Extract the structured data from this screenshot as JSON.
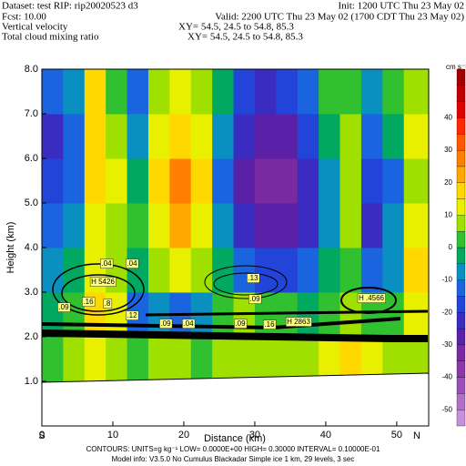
{
  "chart_data": {
    "type": "heatmap",
    "header": {
      "dataset": "Dataset: test  RIP: rip20020523 d3",
      "init": "Init: 1200 UTC Thu 23 May 02",
      "fcst": "Fcst:    10.00",
      "valid": "Valid: 2200 UTC Thu 23 May 02 (1700 CDT Thu 23 May 02)",
      "field1": "Vertical velocity",
      "xy1": "XY=  54.5, 24.5 to  54.8, 85.3",
      "field2": "Total cloud mixing ratio",
      "xy2": "XY=  54.5, 24.5 to  54.8, 85.3"
    },
    "xlabel": "Distance (km)",
    "ylabel": "Height (km)",
    "left_end": "S",
    "right_end": "N",
    "xlim": [
      0,
      54.5
    ],
    "ylim": [
      0,
      8
    ],
    "xticks": [
      0,
      10,
      20,
      30,
      40,
      50
    ],
    "yticks": [
      {
        "value": 1,
        "label": "1.0"
      },
      {
        "value": 2,
        "label": "2.0"
      },
      {
        "value": 3,
        "label": "3.0"
      },
      {
        "value": 4,
        "label": "4.0"
      },
      {
        "value": 5,
        "label": "5.0"
      },
      {
        "value": 6,
        "label": "6.0"
      },
      {
        "value": 7,
        "label": "7.0"
      },
      {
        "value": 8,
        "label": "8.0"
      }
    ],
    "x_edges": [
      0,
      3,
      6,
      9,
      12,
      15,
      18,
      21,
      24,
      27,
      30,
      33,
      36,
      39,
      42,
      45,
      48,
      51,
      54.5
    ],
    "y_edges": [
      1,
      2,
      3,
      4,
      5,
      6,
      7,
      8
    ],
    "values": [
      [
        0,
        5,
        10,
        5,
        0,
        5,
        5,
        0,
        5,
        5,
        5,
        5,
        5,
        10,
        15,
        10,
        5,
        5
      ],
      [
        -5,
        0,
        15,
        10,
        -15,
        -10,
        -15,
        -10,
        0,
        5,
        0,
        0,
        -5,
        0,
        5,
        0,
        0,
        10
      ],
      [
        -10,
        -5,
        10,
        5,
        -5,
        5,
        10,
        5,
        -5,
        -15,
        -20,
        -20,
        -15,
        -5,
        0,
        -15,
        -10,
        15
      ],
      [
        -15,
        -10,
        10,
        5,
        0,
        10,
        20,
        10,
        -10,
        -25,
        -30,
        -30,
        -25,
        -10,
        5,
        -25,
        -10,
        10
      ],
      [
        -20,
        -15,
        15,
        10,
        -5,
        15,
        25,
        15,
        -15,
        -30,
        -35,
        -35,
        -25,
        -10,
        5,
        -20,
        -15,
        5
      ],
      [
        -25,
        -15,
        18,
        5,
        -10,
        10,
        15,
        10,
        -10,
        -25,
        -30,
        -30,
        -20,
        -5,
        5,
        -15,
        -5,
        10
      ],
      [
        -15,
        -10,
        15,
        0,
        -15,
        5,
        10,
        5,
        -5,
        -20,
        -25,
        -20,
        -15,
        0,
        0,
        -10,
        0,
        5
      ]
    ],
    "colorbar": {
      "unit": "cm s⁻¹",
      "levels": [
        -55,
        -50,
        -45,
        -40,
        -35,
        -30,
        -25,
        -20,
        -15,
        -10,
        -5,
        0,
        5,
        10,
        15,
        20,
        25,
        30,
        35,
        40,
        45,
        50,
        55
      ],
      "colors": [
        "#c890d8",
        "#b070c8",
        "#9a50b8",
        "#8a38a8",
        "#7a2aa0",
        "#5a20a8",
        "#3a2cc0",
        "#2244d8",
        "#1a64e0",
        "#0a90c0",
        "#00a860",
        "#30c030",
        "#a0e000",
        "#e8f000",
        "#ffd800",
        "#ffa800",
        "#ff8000",
        "#ff5800",
        "#ff2800",
        "#e00000",
        "#c00000",
        "#a00000"
      ],
      "ticks": [
        40,
        30,
        20,
        10,
        0,
        -10,
        -20,
        -30,
        -40,
        -50
      ]
    },
    "annotations": [
      ".04",
      ".04",
      "H 5426",
      ".09",
      ".16",
      ".8",
      ".12",
      ".09",
      ".04",
      ".13",
      ".09",
      ".09",
      ".16",
      "H 2863",
      "H .4566"
    ],
    "footer": {
      "contours": "CONTOURS:  UNITS=g kg⁻¹  LOW= 0.0000E+00  HIGH= 0.30000      INTERVAL=  0.10000E-01",
      "model": "Model info: V3.5.0 No Cumulus Blackadar  Simple ice    1 km,  29 levels,    3 sec"
    }
  }
}
